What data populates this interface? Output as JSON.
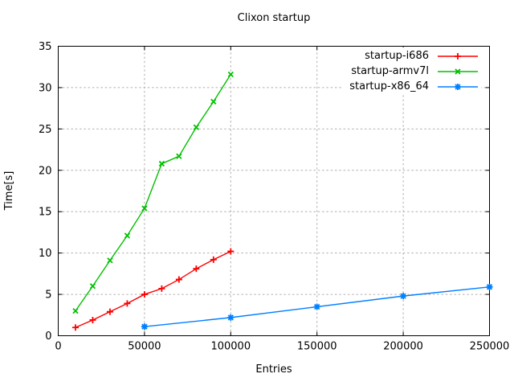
{
  "chart_data": {
    "type": "line",
    "title": "Clixon startup",
    "xlabel": "Entries",
    "ylabel": "Time[s]",
    "xlim": [
      0,
      250000
    ],
    "ylim": [
      0,
      35
    ],
    "x_ticks": [
      "0",
      "50000",
      "100000",
      "150000",
      "200000",
      "250000"
    ],
    "y_ticks": [
      "0",
      "5",
      "10",
      "15",
      "20",
      "25",
      "30",
      "35"
    ],
    "grid": true,
    "grid_style": "dashed",
    "legend_position": "top-right-inside",
    "series": [
      {
        "name": "startup-i686",
        "color": "#ff0000",
        "marker": "plus",
        "x": [
          10000,
          20000,
          30000,
          40000,
          50000,
          60000,
          70000,
          80000,
          90000,
          100000
        ],
        "y": [
          1.0,
          1.9,
          2.9,
          3.9,
          5.0,
          5.7,
          6.8,
          8.1,
          9.2,
          10.2
        ]
      },
      {
        "name": "startup-armv7l",
        "color": "#00c000",
        "marker": "cross",
        "x": [
          10000,
          20000,
          30000,
          40000,
          50000,
          60000,
          70000,
          80000,
          90000,
          100000
        ],
        "y": [
          3.0,
          6.0,
          9.1,
          12.1,
          15.4,
          20.8,
          21.7,
          25.2,
          28.3,
          31.6
        ]
      },
      {
        "name": "startup-x86_64",
        "color": "#0080ff",
        "marker": "asterisk",
        "x": [
          50000,
          100000,
          150000,
          200000,
          250000
        ],
        "y": [
          1.1,
          2.2,
          3.5,
          4.8,
          5.9
        ]
      }
    ],
    "colors": {
      "background": "#ffffff",
      "border": "#000000",
      "grid": "#b0b0b0",
      "text": "#000000"
    }
  }
}
